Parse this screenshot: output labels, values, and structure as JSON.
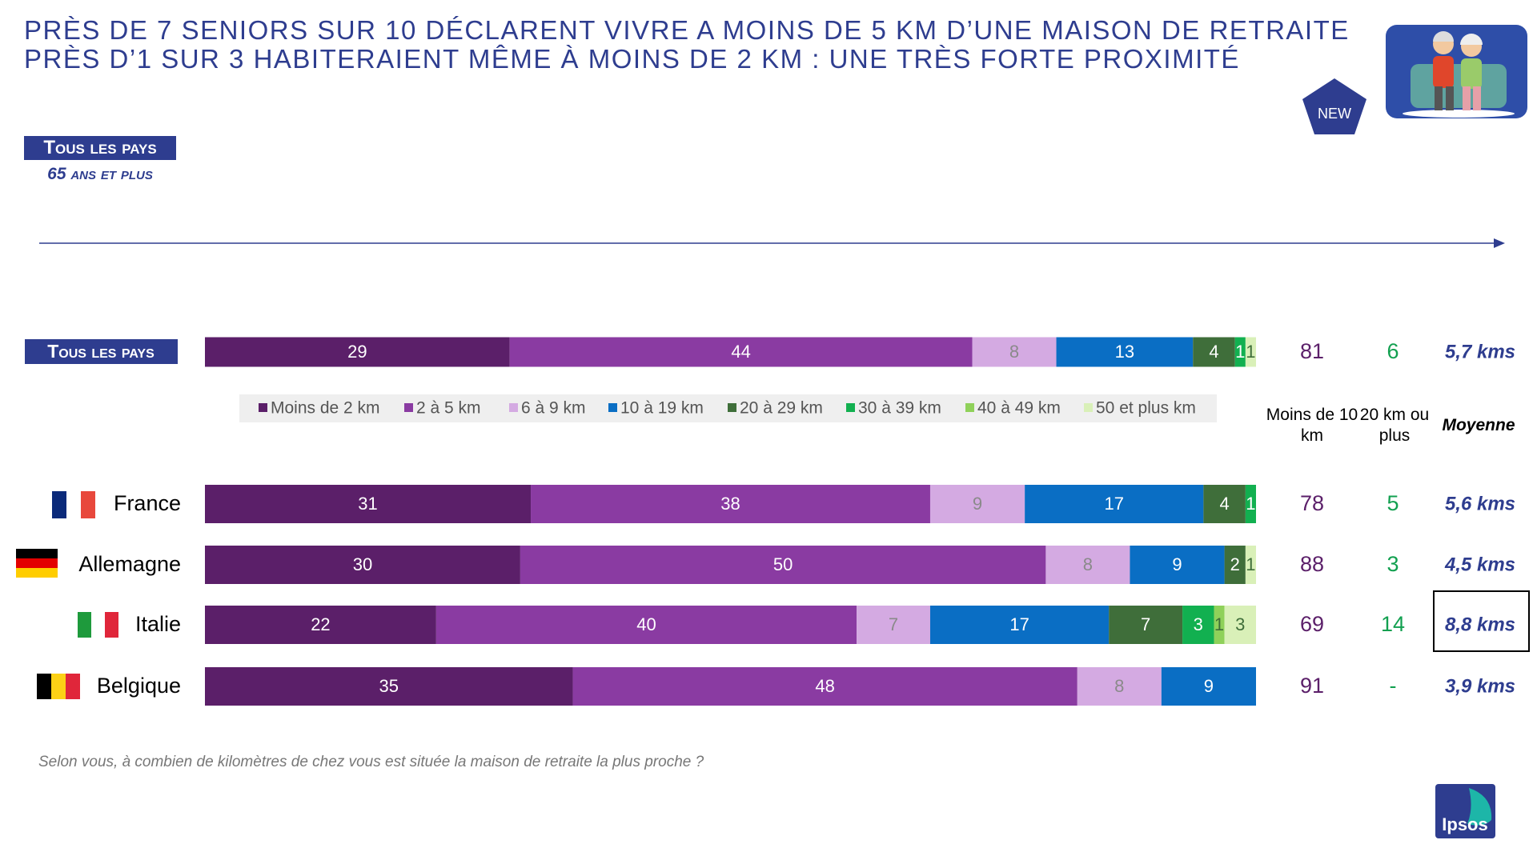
{
  "title_lines": [
    "PRÈS DE 7 SENIORS SUR 10 DÉCLARENT VIVRE A MOINS DE 5 KM D’UNE MAISON DE RETRAITE",
    "PRÈS D’1 SUR 3 HABITERAIENT MÊME À MOINS DE 2 KM : UNE TRÈS FORTE PROXIMITÉ"
  ],
  "badge": "NEW",
  "scope": {
    "title": "Tous les pays",
    "subtitle": "65 ans et plus"
  },
  "chart_data": {
    "type": "bar",
    "orientation": "horizontal",
    "stacked": true,
    "categories": [
      "Tous les pays",
      "France",
      "Allemagne",
      "Italie",
      "Belgique"
    ],
    "xlim": [
      0,
      100
    ],
    "series": [
      {
        "name": "Moins de 2 km",
        "color": "#5b1f69",
        "label_color": "#ffffff",
        "values": [
          29,
          31,
          30,
          22,
          35
        ]
      },
      {
        "name": "2 à 5 km",
        "color": "#8a3ba2",
        "label_color": "#ffffff",
        "values": [
          44,
          38,
          50,
          40,
          48
        ]
      },
      {
        "name": "6 à 9 km",
        "color": "#d4aae2",
        "label_color": "#8a8a8a",
        "values": [
          8,
          9,
          8,
          7,
          8
        ]
      },
      {
        "name": "10 à 19 km",
        "color": "#0a6ec4",
        "label_color": "#ffffff",
        "values": [
          13,
          17,
          9,
          17,
          9
        ]
      },
      {
        "name": "20 à 29 km",
        "color": "#3f6e3a",
        "label_color": "#ffffff",
        "values": [
          4,
          4,
          2,
          7,
          null
        ]
      },
      {
        "name": "30 à 39 km",
        "color": "#12b050",
        "label_color": "#ffffff",
        "values": [
          1,
          1,
          null,
          3,
          null
        ]
      },
      {
        "name": "40 à 49 km",
        "color": "#8fd15a",
        "label_color": "#3f6e3a",
        "values": [
          null,
          null,
          null,
          1,
          null
        ]
      },
      {
        "name": "50 et plus km",
        "color": "#d9f0b8",
        "label_color": "#3f6e3a",
        "values": [
          1,
          null,
          1,
          3,
          null
        ]
      }
    ],
    "columns": [
      {
        "header": "Moins de 10 km",
        "color": "#5b1f69",
        "values": [
          81,
          78,
          88,
          69,
          91
        ]
      },
      {
        "header": "20 km ou plus",
        "color": "#12a050",
        "values": [
          6,
          5,
          3,
          14,
          null
        ],
        "value_labels": [
          "6",
          "5",
          "3",
          "14",
          "-"
        ]
      },
      {
        "header": "Moyenne",
        "color": "#2e3d8f",
        "values": [
          5.7,
          5.6,
          4.5,
          8.8,
          3.9
        ],
        "value_labels": [
          "5,7 kms",
          "5,6 kms",
          "4,5 kms",
          "8,8 kms",
          "3,9 kms"
        ]
      }
    ]
  },
  "question": "Selon vous, à combien de kilomètres de chez vous est située la maison de retraite la plus proche ?",
  "logo": "Ipsos"
}
